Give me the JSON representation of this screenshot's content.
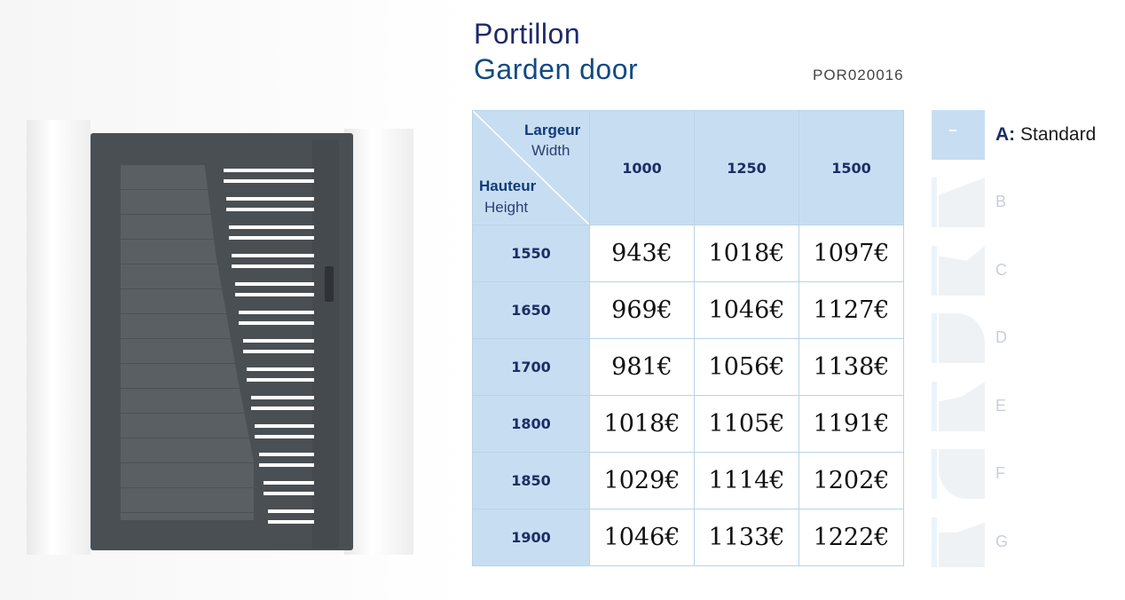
{
  "header": {
    "title_fr": "Portillon",
    "title_en": "Garden door",
    "reference": "POR020016"
  },
  "table": {
    "corner": {
      "width_fr": "Largeur",
      "width_en": "Width",
      "height_fr": "Hauteur",
      "height_en": "Height"
    },
    "columns": [
      "1000",
      "1250",
      "1500"
    ],
    "rows": [
      {
        "height": "1550",
        "prices": [
          "943€",
          "1018€",
          "1097€"
        ]
      },
      {
        "height": "1650",
        "prices": [
          "969€",
          "1046€",
          "1127€"
        ]
      },
      {
        "height": "1700",
        "prices": [
          "981€",
          "1056€",
          "1138€"
        ]
      },
      {
        "height": "1800",
        "prices": [
          "1018€",
          "1105€",
          "1191€"
        ]
      },
      {
        "height": "1850",
        "prices": [
          "1029€",
          "1114€",
          "1202€"
        ]
      },
      {
        "height": "1900",
        "prices": [
          "1046€",
          "1133€",
          "1222€"
        ]
      }
    ]
  },
  "options": [
    {
      "letter": "A:",
      "name": "Standard",
      "active": true
    },
    {
      "letter": "B",
      "name": "",
      "active": false
    },
    {
      "letter": "C",
      "name": "",
      "active": false
    },
    {
      "letter": "D",
      "name": "",
      "active": false
    },
    {
      "letter": "E",
      "name": "",
      "active": false
    },
    {
      "letter": "F",
      "name": "",
      "active": false
    },
    {
      "letter": "G",
      "name": "",
      "active": false
    }
  ],
  "colors": {
    "header_cell": "#c7def2",
    "title_primary": "#1f2a6b",
    "title_secondary": "#124a82",
    "gate": "#4a4f53"
  }
}
